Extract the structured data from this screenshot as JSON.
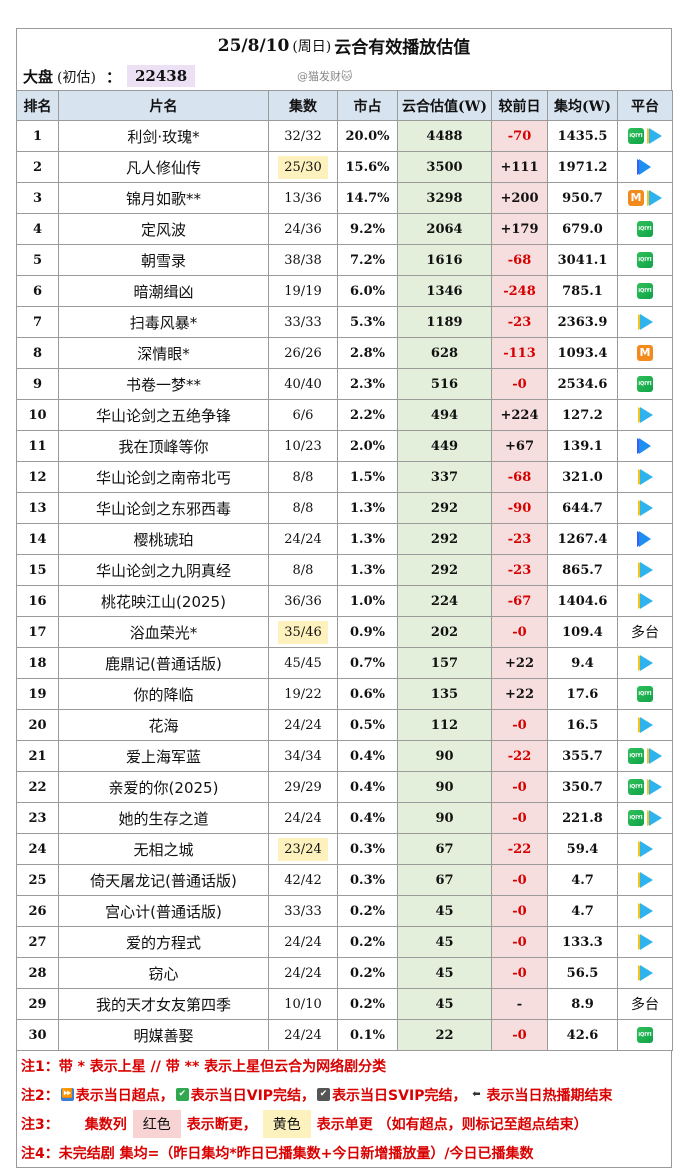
{
  "title": {
    "date": "25/8/10",
    "weekday": "(周日)",
    "text": "云合有效播放估值"
  },
  "dapan": {
    "label": "大盘",
    "sub": "(初估)",
    "colon": "：",
    "value": "22438"
  },
  "watermark": "@猫发财🐱",
  "columns": [
    "排名",
    "片名",
    "集数",
    "市占",
    "云合估值(W)",
    "较前日",
    "集均(W)",
    "平台"
  ],
  "rows": [
    {
      "rank": "1",
      "name": "利剑·玫瑰*",
      "eps": "32/32",
      "eps_hl": "",
      "share": "20.0%",
      "est": "4488",
      "delta": "-70",
      "avg": "1435.5",
      "platforms": [
        "iqiyi",
        "tencent"
      ]
    },
    {
      "rank": "2",
      "name": "凡人修仙传",
      "eps": "25/30",
      "eps_hl": "yellow",
      "share": "15.6%",
      "est": "3500",
      "delta": "+111",
      "avg": "1971.2",
      "platforms": [
        "youku"
      ]
    },
    {
      "rank": "3",
      "name": "锦月如歌**",
      "eps": "13/36",
      "eps_hl": "",
      "share": "14.7%",
      "est": "3298",
      "delta": "+200",
      "avg": "950.7",
      "platforms": [
        "mango",
        "tencent"
      ]
    },
    {
      "rank": "4",
      "name": "定风波",
      "eps": "24/36",
      "eps_hl": "",
      "share": "9.2%",
      "est": "2064",
      "delta": "+179",
      "avg": "679.0",
      "platforms": [
        "iqiyi"
      ]
    },
    {
      "rank": "5",
      "name": "朝雪录",
      "eps": "38/38",
      "eps_hl": "",
      "share": "7.2%",
      "est": "1616",
      "delta": "-68",
      "avg": "3041.1",
      "platforms": [
        "iqiyi"
      ]
    },
    {
      "rank": "6",
      "name": "暗潮缉凶",
      "eps": "19/19",
      "eps_hl": "",
      "share": "6.0%",
      "est": "1346",
      "delta": "-248",
      "avg": "785.1",
      "platforms": [
        "iqiyi"
      ]
    },
    {
      "rank": "7",
      "name": "扫毒风暴*",
      "eps": "33/33",
      "eps_hl": "",
      "share": "5.3%",
      "est": "1189",
      "delta": "-23",
      "avg": "2363.9",
      "platforms": [
        "tencent"
      ]
    },
    {
      "rank": "8",
      "name": "深情眼*",
      "eps": "26/26",
      "eps_hl": "",
      "share": "2.8%",
      "est": "628",
      "delta": "-113",
      "avg": "1093.4",
      "platforms": [
        "mango"
      ]
    },
    {
      "rank": "9",
      "name": "书卷一梦**",
      "eps": "40/40",
      "eps_hl": "",
      "share": "2.3%",
      "est": "516",
      "delta": "-0",
      "avg": "2534.6",
      "platforms": [
        "iqiyi"
      ]
    },
    {
      "rank": "10",
      "name": "华山论剑之五绝争锋",
      "eps": "6/6",
      "eps_hl": "",
      "share": "2.2%",
      "est": "494",
      "delta": "+224",
      "avg": "127.2",
      "platforms": [
        "tencent"
      ]
    },
    {
      "rank": "11",
      "name": "我在顶峰等你",
      "eps": "10/23",
      "eps_hl": "",
      "share": "2.0%",
      "est": "449",
      "delta": "+67",
      "avg": "139.1",
      "platforms": [
        "youku"
      ]
    },
    {
      "rank": "12",
      "name": "华山论剑之南帝北丐",
      "eps": "8/8",
      "eps_hl": "",
      "share": "1.5%",
      "est": "337",
      "delta": "-68",
      "avg": "321.0",
      "platforms": [
        "tencent"
      ]
    },
    {
      "rank": "13",
      "name": "华山论剑之东邪西毒",
      "eps": "8/8",
      "eps_hl": "",
      "share": "1.3%",
      "est": "292",
      "delta": "-90",
      "avg": "644.7",
      "platforms": [
        "tencent"
      ]
    },
    {
      "rank": "14",
      "name": "樱桃琥珀",
      "eps": "24/24",
      "eps_hl": "",
      "share": "1.3%",
      "est": "292",
      "delta": "-23",
      "avg": "1267.4",
      "platforms": [
        "youku"
      ]
    },
    {
      "rank": "15",
      "name": "华山论剑之九阴真经",
      "eps": "8/8",
      "eps_hl": "",
      "share": "1.3%",
      "est": "292",
      "delta": "-23",
      "avg": "865.7",
      "platforms": [
        "tencent"
      ]
    },
    {
      "rank": "16",
      "name": "桃花映江山(2025)",
      "eps": "36/36",
      "eps_hl": "",
      "share": "1.0%",
      "est": "224",
      "delta": "-67",
      "avg": "1404.6",
      "platforms": [
        "tencent"
      ]
    },
    {
      "rank": "17",
      "name": "浴血荣光*",
      "eps": "35/46",
      "eps_hl": "yellow",
      "share": "0.9%",
      "est": "202",
      "delta": "-0",
      "avg": "109.4",
      "platforms": [
        "multi"
      ],
      "platform_text": "多台"
    },
    {
      "rank": "18",
      "name": "鹿鼎记(普通话版)",
      "eps": "45/45",
      "eps_hl": "",
      "share": "0.7%",
      "est": "157",
      "delta": "+22",
      "avg": "9.4",
      "platforms": [
        "tencent"
      ]
    },
    {
      "rank": "19",
      "name": "你的降临",
      "eps": "19/22",
      "eps_hl": "",
      "share": "0.6%",
      "est": "135",
      "delta": "+22",
      "avg": "17.6",
      "platforms": [
        "iqiyi"
      ]
    },
    {
      "rank": "20",
      "name": "花海",
      "eps": "24/24",
      "eps_hl": "",
      "share": "0.5%",
      "est": "112",
      "delta": "-0",
      "avg": "16.5",
      "platforms": [
        "tencent"
      ]
    },
    {
      "rank": "21",
      "name": "爱上海军蓝",
      "eps": "34/34",
      "eps_hl": "",
      "share": "0.4%",
      "est": "90",
      "delta": "-22",
      "avg": "355.7",
      "platforms": [
        "iqiyi",
        "tencent"
      ]
    },
    {
      "rank": "22",
      "name": "亲爱的你(2025)",
      "eps": "29/29",
      "eps_hl": "",
      "share": "0.4%",
      "est": "90",
      "delta": "-0",
      "avg": "350.7",
      "platforms": [
        "iqiyi",
        "tencent"
      ]
    },
    {
      "rank": "23",
      "name": "她的生存之道",
      "eps": "24/24",
      "eps_hl": "",
      "share": "0.4%",
      "est": "90",
      "delta": "-0",
      "avg": "221.8",
      "platforms": [
        "iqiyi",
        "tencent"
      ]
    },
    {
      "rank": "24",
      "name": "无相之城",
      "eps": "23/24",
      "eps_hl": "yellow",
      "share": "0.3%",
      "est": "67",
      "delta": "-22",
      "avg": "59.4",
      "platforms": [
        "tencent"
      ]
    },
    {
      "rank": "25",
      "name": "倚天屠龙记(普通话版)",
      "eps": "42/42",
      "eps_hl": "",
      "share": "0.3%",
      "est": "67",
      "delta": "-0",
      "avg": "4.7",
      "platforms": [
        "tencent"
      ]
    },
    {
      "rank": "26",
      "name": "宫心计(普通话版)",
      "eps": "33/33",
      "eps_hl": "",
      "share": "0.2%",
      "est": "45",
      "delta": "-0",
      "avg": "4.7",
      "platforms": [
        "tencent"
      ]
    },
    {
      "rank": "27",
      "name": "爱的方程式",
      "eps": "24/24",
      "eps_hl": "",
      "share": "0.2%",
      "est": "45",
      "delta": "-0",
      "avg": "133.3",
      "platforms": [
        "tencent"
      ]
    },
    {
      "rank": "28",
      "name": "窃心",
      "eps": "24/24",
      "eps_hl": "",
      "share": "0.2%",
      "est": "45",
      "delta": "-0",
      "avg": "56.5",
      "platforms": [
        "tencent"
      ]
    },
    {
      "rank": "29",
      "name": "我的天才女友第四季",
      "eps": "10/10",
      "eps_hl": "",
      "share": "0.2%",
      "est": "45",
      "delta": "-",
      "avg": "8.9",
      "platforms": [
        "multi"
      ],
      "platform_text": "多台"
    },
    {
      "rank": "30",
      "name": "明媒善娶",
      "eps": "24/24",
      "eps_hl": "",
      "share": "0.1%",
      "est": "22",
      "delta": "-0",
      "avg": "42.6",
      "platforms": [
        "iqiyi"
      ]
    }
  ],
  "platform_icons": {
    "iqiyi": {
      "icon": "iqiyi-logo-icon",
      "label": "iQIYI",
      "color": "#1fb251"
    },
    "tencent": {
      "icon": "tencent-video-play-icon",
      "color": "#2fb3ef"
    },
    "youku": {
      "icon": "youku-play-icon",
      "color": "#1e8ff0"
    },
    "mango": {
      "icon": "mango-tv-icon",
      "label": "M",
      "color": "#f28a1d"
    }
  },
  "notes": {
    "n1": "注1：带 * 表示上星 // 带 ** 表示上星但云合为网络剧分类",
    "n2_prefix": "注2：",
    "n2_a": "表示当日超点，",
    "n2_b": "表示当日VIP完结，",
    "n2_c": "表示当日SVIP完结，",
    "n2_d": "表示当日热播期结束",
    "n3_prefix": "注3：",
    "n3_col": "集数列",
    "n3_red": "红色",
    "n3_red_desc": "表示断更，",
    "n3_yellow": "黄色",
    "n3_yellow_desc": "表示单更 （如有超点，则标记至超点结束）",
    "n4": "注4：未完结剧 集均=（昨日集均*昨日已播集数+今日新增播放量）/今日已播集数"
  },
  "colors": {
    "header_bg": "#d8e3f0",
    "estimate_bg": "#e3efdb",
    "delta_bg": "#f7dede",
    "negative_text": "#d60000",
    "yellow_highlight": "#fdf2bd",
    "red_highlight": "#f7d3d3",
    "dapan_bg": "#ece1f4",
    "note_text": "#d80000"
  }
}
